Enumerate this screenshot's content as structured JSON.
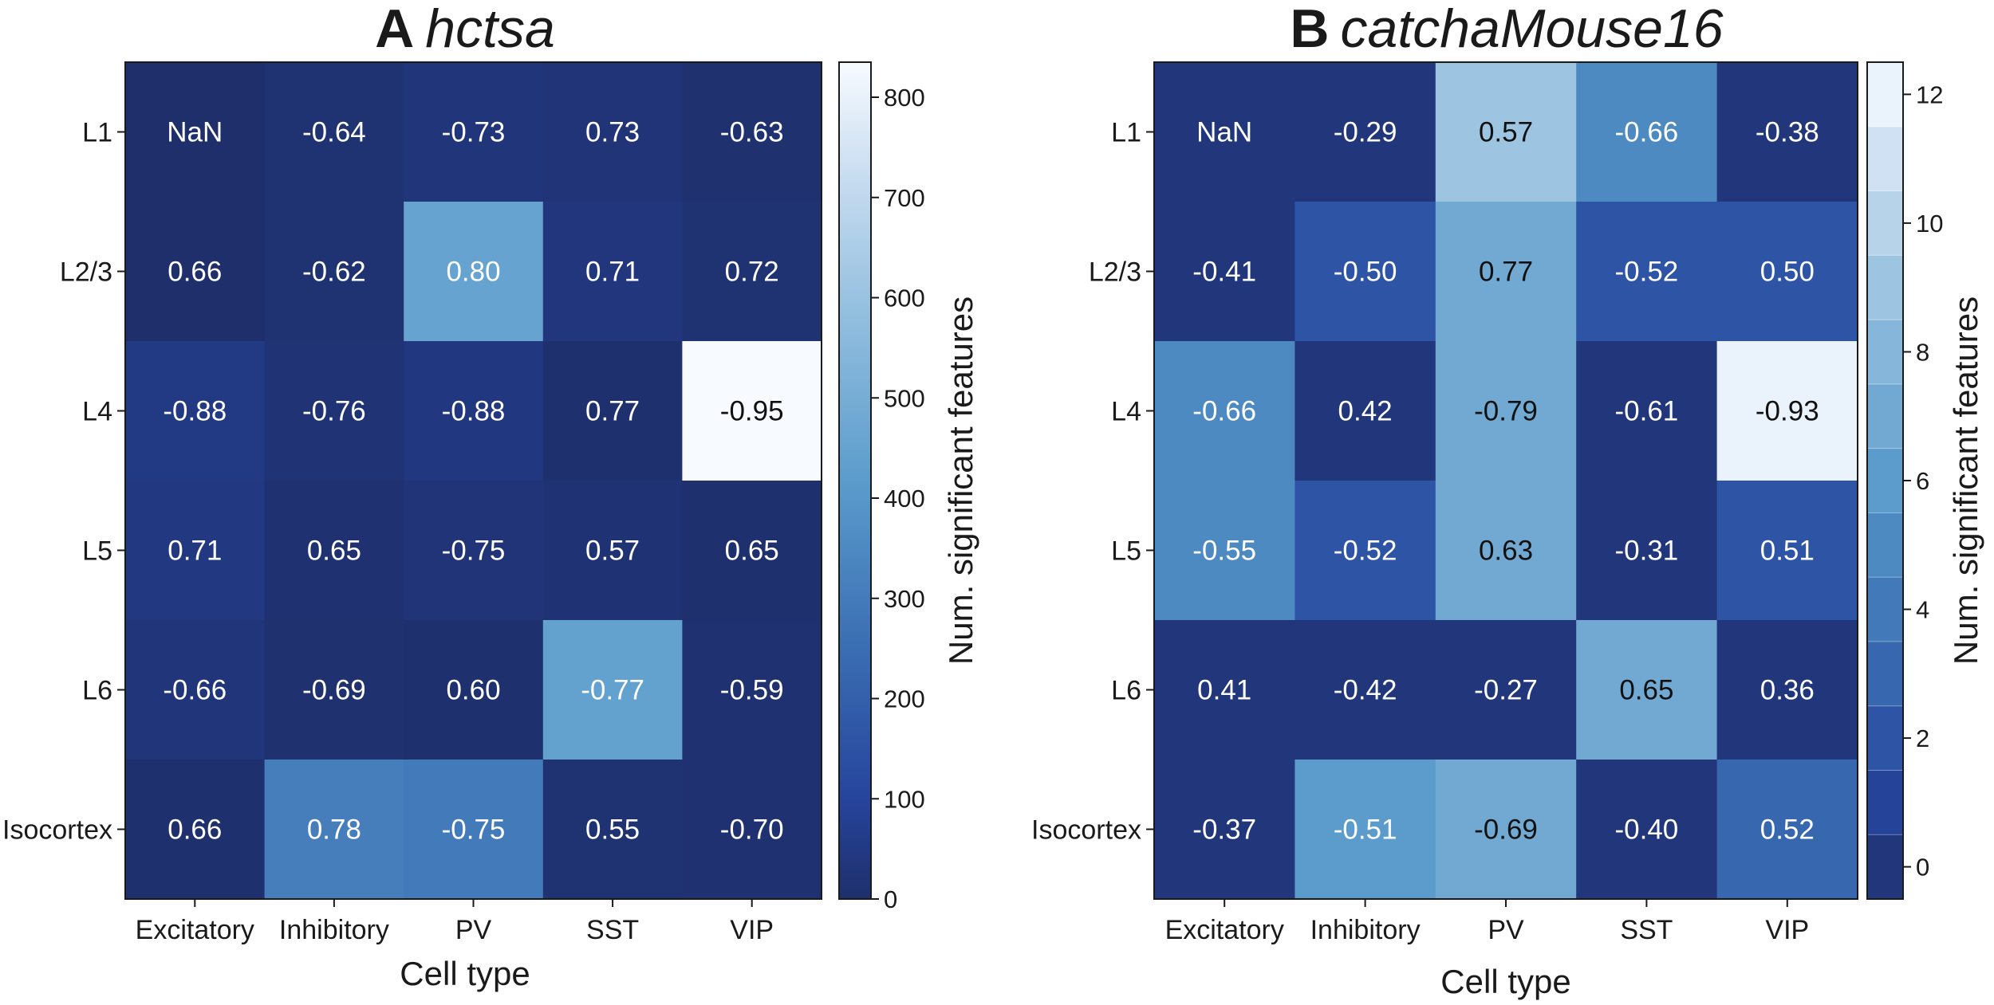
{
  "chart_data": [
    {
      "type": "heatmap",
      "panel": "A",
      "title": "hctsa",
      "xlabel": "Cell type",
      "ylabel": "",
      "categories_x": [
        "Excitatory",
        "Inhibitory",
        "PV",
        "SST",
        "VIP"
      ],
      "categories_y": [
        "L1",
        "L2/3",
        "L4",
        "L5",
        "L6",
        "Isocortex"
      ],
      "cell_labels": [
        [
          "NaN",
          "-0.64",
          "-0.73",
          "0.73",
          "-0.63"
        ],
        [
          "0.66",
          "-0.62",
          "0.80",
          "0.71",
          "0.72"
        ],
        [
          "-0.88",
          "-0.76",
          "-0.88",
          "0.77",
          "-0.95"
        ],
        [
          "0.71",
          "0.65",
          "-0.75",
          "0.57",
          "0.65"
        ],
        [
          "-0.66",
          "-0.69",
          "0.60",
          "-0.77",
          "-0.59"
        ],
        [
          "0.66",
          "0.78",
          "-0.75",
          "0.55",
          "-0.70"
        ]
      ],
      "values": [
        [
          0,
          15,
          30,
          25,
          8
        ],
        [
          2,
          12,
          450,
          35,
          15
        ],
        [
          50,
          20,
          40,
          5,
          835
        ],
        [
          45,
          10,
          25,
          18,
          5
        ],
        [
          30,
          8,
          5,
          440,
          10
        ],
        [
          5,
          310,
          295,
          12,
          10
        ]
      ],
      "colorbar": {
        "label": "Num. significant features",
        "vmin": 0,
        "vmax": 835,
        "ticks": [
          "0",
          "100",
          "200",
          "300",
          "400",
          "500",
          "600",
          "700",
          "800"
        ],
        "discrete": false
      }
    },
    {
      "type": "heatmap",
      "panel": "B",
      "title": "catchaMouse16",
      "xlabel": "Cell type",
      "ylabel": "",
      "categories_x": [
        "Excitatory",
        "Inhibitory",
        "PV",
        "SST",
        "VIP"
      ],
      "categories_y": [
        "L1",
        "L2/3",
        "L4",
        "L5",
        "L6",
        "Isocortex"
      ],
      "cell_labels": [
        [
          "NaN",
          "-0.29",
          "0.57",
          "-0.66",
          "-0.38"
        ],
        [
          "-0.41",
          "-0.50",
          "0.77",
          "-0.52",
          "0.50"
        ],
        [
          "-0.66",
          "0.42",
          "-0.79",
          "-0.61",
          "-0.93"
        ],
        [
          "-0.55",
          "-0.52",
          "0.63",
          "-0.31",
          "0.51"
        ],
        [
          "0.41",
          "-0.42",
          "-0.27",
          "0.65",
          "0.36"
        ],
        [
          "-0.37",
          "-0.51",
          "-0.69",
          "-0.40",
          "0.52"
        ]
      ],
      "values": [
        [
          0,
          0,
          9,
          5,
          0
        ],
        [
          0,
          2,
          7,
          2,
          2
        ],
        [
          5,
          0,
          7,
          0,
          12
        ],
        [
          5,
          2,
          7,
          0,
          2
        ],
        [
          0,
          0,
          0,
          7,
          0
        ],
        [
          0,
          6,
          7,
          0,
          3
        ]
      ],
      "colorbar": {
        "label": "Num. significant features",
        "vmin": -0.5,
        "vmax": 12.5,
        "ticks": [
          "0",
          "2",
          "4",
          "6",
          "8",
          "10",
          "12"
        ],
        "discrete": true
      }
    }
  ]
}
